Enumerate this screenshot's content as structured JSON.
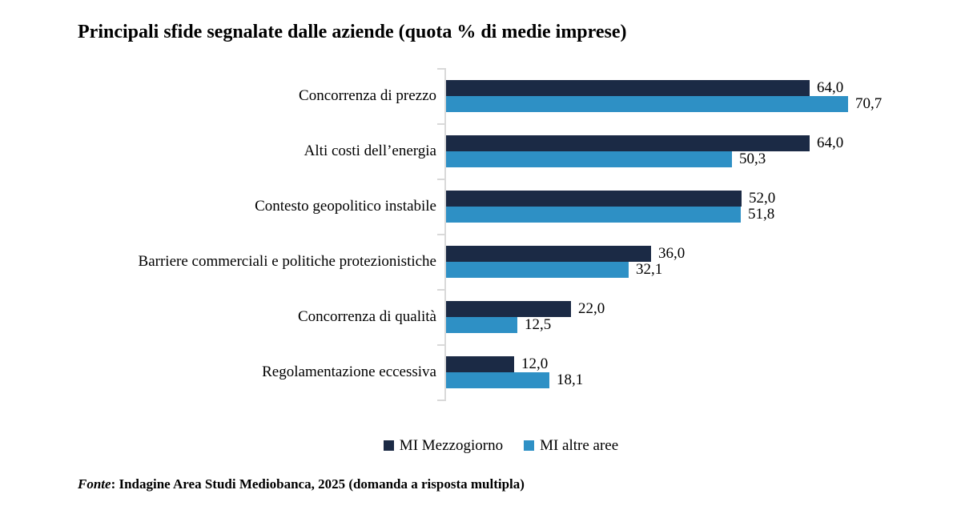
{
  "title": "Principali sfide segnalate dalle aziende (quota % di medie imprese)",
  "footer": {
    "prefix": "Fonte",
    "rest": ": Indagine Area Studi Mediobanca, 2025 (domanda a risposta multipla)"
  },
  "colors": {
    "series1": "#1B2A45",
    "series2": "#2E90C5",
    "axis": "#D9D9D9",
    "background": "#FFFFFF",
    "text": "#000000"
  },
  "legend": [
    {
      "label": "MI Mezzogiorno",
      "color": "#1B2A45"
    },
    {
      "label": "MI altre aree",
      "color": "#2E90C5"
    }
  ],
  "chart_data": {
    "type": "bar",
    "orientation": "horizontal",
    "title": "Principali sfide segnalate dalle aziende (quota % di medie imprese)",
    "categories": [
      "Concorrenza di prezzo",
      "Alti costi dell’energia",
      "Contesto geopolitico instabile",
      "Barriere commerciali e politiche protezionistiche",
      "Concorrenza di qualità",
      "Regolamentazione eccessiva"
    ],
    "series": [
      {
        "name": "MI Mezzogiorno",
        "color": "#1B2A45",
        "values": [
          64.0,
          64.0,
          52.0,
          36.0,
          22.0,
          12.0
        ]
      },
      {
        "name": "MI altre aree",
        "color": "#2E90C5",
        "values": [
          70.7,
          50.3,
          51.8,
          32.1,
          12.5,
          18.1
        ]
      }
    ],
    "value_labels": [
      [
        "64,0",
        "70,7"
      ],
      [
        "64,0",
        "50,3"
      ],
      [
        "52,0",
        "51,8"
      ],
      [
        "36,0",
        "32,1"
      ],
      [
        "22,0",
        "12,5"
      ],
      [
        "12,0",
        "18,1"
      ]
    ],
    "value_format": "comma-decimal-1",
    "xlabel": "",
    "ylabel": "",
    "xlim": [
      0,
      75
    ],
    "grid": false,
    "legend_position": "bottom",
    "axis_line": "left-vertical-gray-with-ticks"
  }
}
